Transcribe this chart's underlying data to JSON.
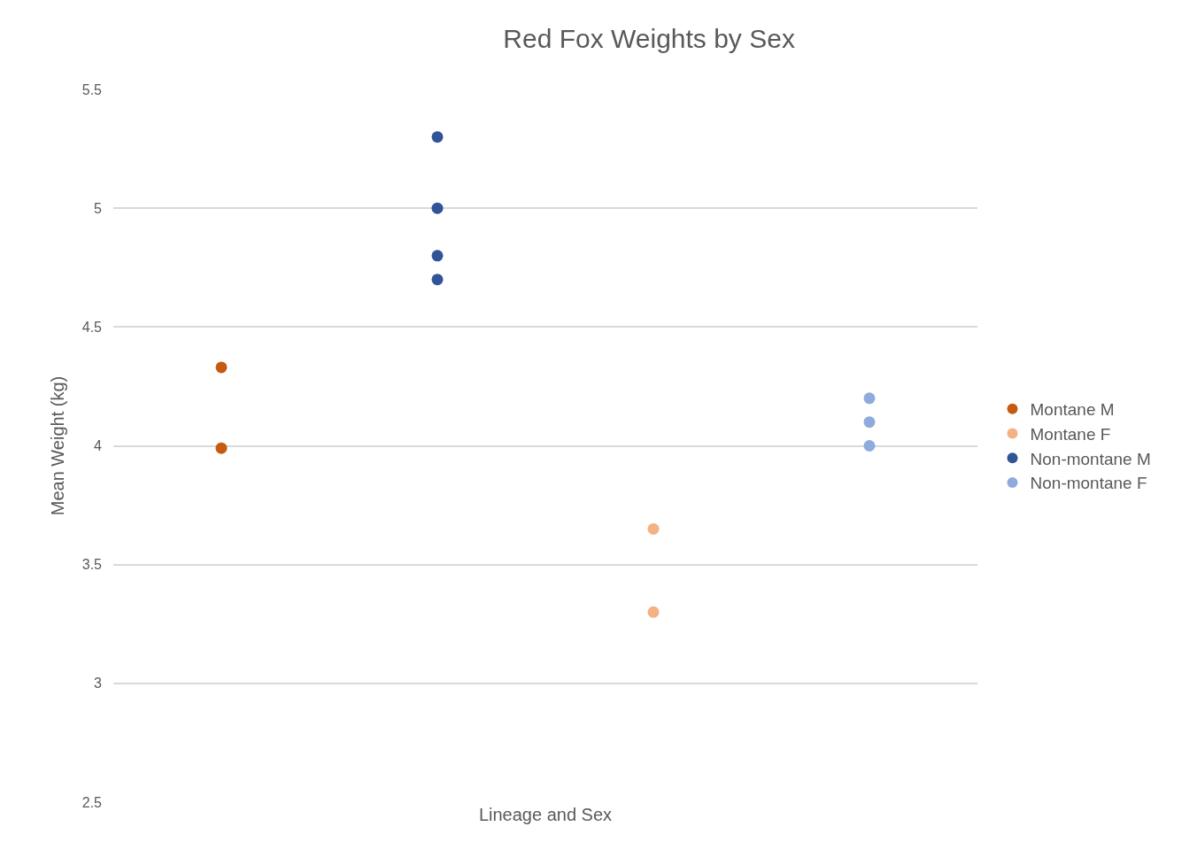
{
  "chart_data": {
    "type": "scatter",
    "title": "Red Fox Weights by Sex",
    "xlabel": "Lineage and Sex",
    "ylabel": "Mean Weight (kg)",
    "categories": [
      null,
      null,
      null,
      null
    ],
    "ylim": [
      2.5,
      5.5
    ],
    "yticks": [
      2.5,
      3,
      3.5,
      4,
      4.5,
      5,
      5.5
    ],
    "grid": "y",
    "legend": "right",
    "marker": "circle",
    "series": [
      {
        "name": "Montane M",
        "color": "#c55a11",
        "values": [
          4.33,
          null,
          null,
          null
        ]
      },
      {
        "name": "Montane F",
        "color": "#f4b183",
        "values": [
          null,
          null,
          3.65,
          null
        ]
      },
      {
        "name": "Non-montane M",
        "color": "#2f5597",
        "values": [
          null,
          5.3,
          null,
          null
        ]
      },
      {
        "name": "Non-montane F",
        "color": "#8faadc",
        "values": [
          null,
          null,
          null,
          4.2
        ]
      },
      {
        "color": "#c55a11",
        "values": [
          3.99,
          null,
          null,
          null
        ]
      },
      {
        "color": "#f4b183",
        "values": [
          null,
          null,
          3.3,
          null
        ]
      },
      {
        "color": "#2f5597",
        "values": [
          null,
          5.0,
          null,
          null
        ]
      },
      {
        "color": "#2f5597",
        "values": [
          null,
          4.8,
          null,
          null
        ]
      },
      {
        "color": "#2f5597",
        "values": [
          null,
          4.7,
          null,
          null
        ]
      },
      {
        "color": "#8faadc",
        "values": [
          null,
          null,
          null,
          4.1
        ]
      },
      {
        "color": "#8faadc",
        "values": [
          null,
          null,
          null,
          4.0
        ]
      }
    ]
  }
}
